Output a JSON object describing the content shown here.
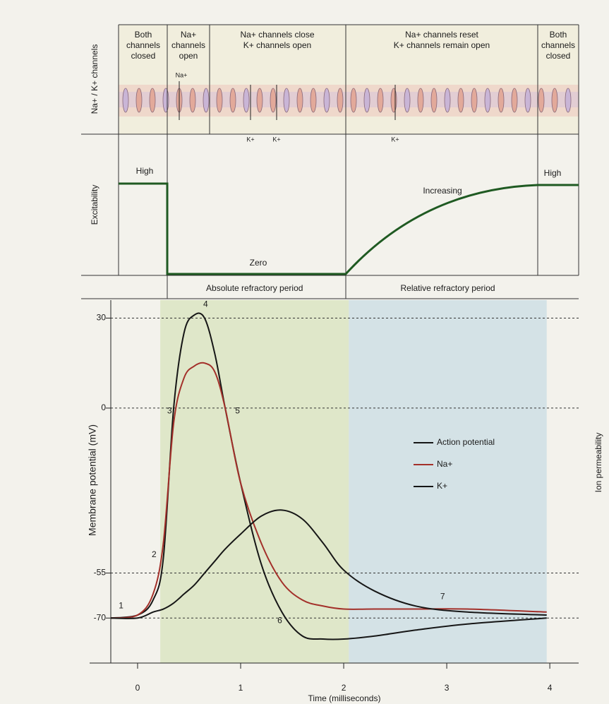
{
  "header_panel": {
    "axis_label": "Na+ / K+ channels",
    "phases": [
      [
        "Both",
        "channels",
        "closed"
      ],
      [
        "Na+",
        "channels",
        "open"
      ],
      [
        "Na+ channels close",
        "K+ channels open"
      ],
      [
        "Na+ channels reset",
        "K+ channels remain open"
      ],
      [
        "Both",
        "channels",
        "closed"
      ]
    ],
    "flow_labels": [
      "Na+",
      "K+",
      "K+",
      "K+"
    ]
  },
  "excitability_panel": {
    "axis_label": "Excitability",
    "labels": [
      "High",
      "Zero",
      "Increasing",
      "High"
    ]
  },
  "chart_data": {
    "type": "line",
    "y_label": "Membrane potential (mV)",
    "y2_label": "Ion permeability",
    "x_label": "Time (milliseconds)",
    "xlim": [
      -0.26,
      4.28
    ],
    "ylim": [
      -85,
      36
    ],
    "xticks": [
      0,
      1,
      2,
      3,
      4
    ],
    "yticks": [
      30,
      0,
      -55,
      -70
    ],
    "grid": true,
    "legend": "center right",
    "regions": [
      {
        "label": "Absolute refractory period",
        "x": [
          0.22,
          2.05
        ],
        "color": "#dfe7c9"
      },
      {
        "label": "Relative refractory period",
        "x": [
          2.05,
          3.97
        ],
        "color": "#d4e2e6"
      }
    ],
    "x": [
      -0.26,
      0,
      0.15,
      0.25,
      0.35,
      0.45,
      0.55,
      0.65,
      0.75,
      0.85,
      1.0,
      1.2,
      1.4,
      1.6,
      1.8,
      2.0,
      2.3,
      2.7,
      3.2,
      3.97
    ],
    "series": [
      {
        "name": "Action potential",
        "color": "#161616",
        "values": [
          -70,
          -69,
          -64,
          -50,
          0,
          25,
          31,
          30,
          18,
          0,
          -25,
          -52,
          -68,
          -76,
          -77,
          -77,
          -76,
          -74,
          -72,
          -70
        ]
      },
      {
        "name": "Na+",
        "color": "#a3302a",
        "values": [
          -70,
          -69,
          -62,
          -45,
          -5,
          10,
          14,
          15,
          12,
          0,
          -25,
          -45,
          -58,
          -64,
          -66,
          -67,
          -67,
          -67,
          -67,
          -68
        ]
      },
      {
        "name": "K+",
        "color": "#161616",
        "values": [
          -70,
          -70,
          -68,
          -67,
          -65,
          -62,
          -59,
          -55,
          -51,
          -47,
          -42,
          -36,
          -34,
          -37,
          -45,
          -54,
          -61,
          -66,
          -68,
          -69
        ]
      }
    ],
    "annotations": [
      {
        "text": "1",
        "x": -0.16,
        "y": -66
      },
      {
        "text": "2",
        "x": 0.16,
        "y": -49
      },
      {
        "text": "3",
        "x": 0.31,
        "y": -1
      },
      {
        "text": "4",
        "x": 0.66,
        "y": 34.5
      },
      {
        "text": "5",
        "x": 0.97,
        "y": -1
      },
      {
        "text": "6",
        "x": 1.38,
        "y": -71
      },
      {
        "text": "7",
        "x": 2.96,
        "y": -63
      }
    ]
  }
}
